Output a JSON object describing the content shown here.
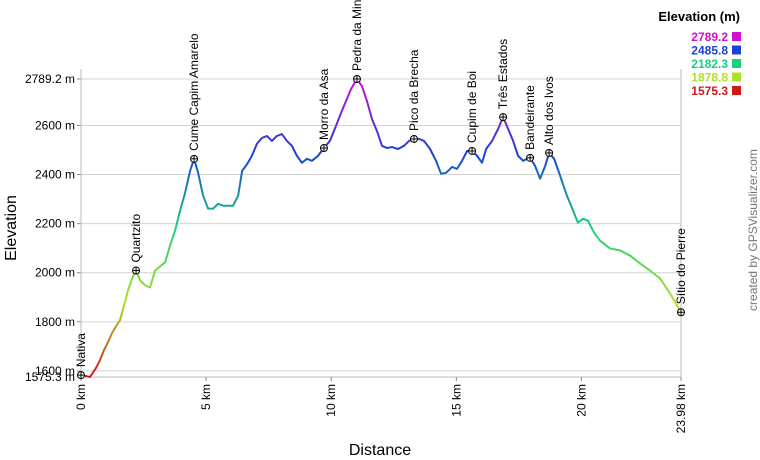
{
  "chart_data": {
    "type": "line",
    "y_label": "Elevation",
    "x_label": "Distance",
    "watermark": "created by GPSVisualizer.com",
    "xlim": [
      0,
      23.98
    ],
    "xticks": [
      {
        "value": 0,
        "label": "0 km"
      },
      {
        "value": 5,
        "label": "5 km"
      },
      {
        "value": 10,
        "label": "10 km"
      },
      {
        "value": 15,
        "label": "15 km"
      },
      {
        "value": 20,
        "label": "20 km"
      },
      {
        "value": 23.98,
        "label": "23.98 km"
      }
    ],
    "ylim": [
      1575.3,
      2789.2
    ],
    "yticks": [
      {
        "value": 1575.3,
        "label": "1575.3 m"
      },
      {
        "value": 1600,
        "label": "1600 m"
      },
      {
        "value": 1800,
        "label": "1800 m"
      },
      {
        "value": 2000,
        "label": "2000 m"
      },
      {
        "value": 2200,
        "label": "2200 m"
      },
      {
        "value": 2400,
        "label": "2400 m"
      },
      {
        "value": 2600,
        "label": "2600 m"
      },
      {
        "value": 2789.2,
        "label": "2789.2 m"
      }
    ],
    "grid": true,
    "legend": {
      "title": "Elevation (m)",
      "position": "top-right",
      "levels": [
        {
          "value": 2789.2,
          "color": "#d010d0"
        },
        {
          "value": 2485.8,
          "color": "#1a40d8"
        },
        {
          "value": 2182.3,
          "color": "#18d080"
        },
        {
          "value": 1878.8,
          "color": "#b0e020"
        },
        {
          "value": 1575.3,
          "color": "#d01818"
        }
      ]
    },
    "x": [
      0,
      0.2,
      0.36,
      0.6,
      0.76,
      0.92,
      1.08,
      1.24,
      1.4,
      1.56,
      1.72,
      1.88,
      2.04,
      2.2,
      2.36,
      2.56,
      2.76,
      2.96,
      3.16,
      3.36,
      3.56,
      3.76,
      3.96,
      4.16,
      4.36,
      4.52,
      4.68,
      4.88,
      5.08,
      5.28,
      5.48,
      5.68,
      5.88,
      6.08,
      6.28,
      6.44,
      6.64,
      6.83,
      7.03,
      7.23,
      7.43,
      7.63,
      7.83,
      8.03,
      8.23,
      8.43,
      8.63,
      8.83,
      9.03,
      9.23,
      9.47,
      9.71,
      9.95,
      10.19,
      10.39,
      10.59,
      10.79,
      11.03,
      11.23,
      11.43,
      11.63,
      11.83,
      12.03,
      12.23,
      12.43,
      12.67,
      12.91,
      13.11,
      13.31,
      13.51,
      13.71,
      13.95,
      14.19,
      14.39,
      14.59,
      14.83,
      15.03,
      15.23,
      15.43,
      15.63,
      15.83,
      16.03,
      16.19,
      16.43,
      16.67,
      16.87,
      17.07,
      17.27,
      17.47,
      17.67,
      17.83,
      17.95,
      18.15,
      18.35,
      18.55,
      18.71,
      18.91,
      19.15,
      19.39,
      19.62,
      19.86,
      20.06,
      20.26,
      20.5,
      20.74,
      21.14,
      21.54,
      21.94,
      22.34,
      22.74,
      23.14,
      23.54,
      23.98
    ],
    "values": [
      1583,
      1579,
      1575.3,
      1612,
      1644,
      1685,
      1717,
      1754,
      1782,
      1807,
      1867,
      1928,
      1977,
      2009,
      1969,
      1949,
      1940,
      2009,
      2026,
      2042,
      2111,
      2172,
      2253,
      2326,
      2415,
      2464,
      2407,
      2314,
      2261,
      2261,
      2281,
      2273,
      2273,
      2273,
      2314,
      2415,
      2443,
      2476,
      2525,
      2549,
      2557,
      2537,
      2557,
      2565,
      2537,
      2517,
      2476,
      2448,
      2464,
      2456,
      2476,
      2508,
      2537,
      2598,
      2650,
      2699,
      2748,
      2789.2,
      2760,
      2699,
      2626,
      2577,
      2517,
      2508,
      2512,
      2504,
      2517,
      2537,
      2545,
      2545,
      2537,
      2504,
      2456,
      2403,
      2407,
      2431,
      2423,
      2456,
      2496,
      2496,
      2476,
      2448,
      2504,
      2537,
      2586,
      2634,
      2586,
      2537,
      2476,
      2456,
      2464,
      2468,
      2435,
      2383,
      2435,
      2488,
      2464,
      2395,
      2322,
      2265,
      2204,
      2220,
      2212,
      2164,
      2131,
      2099,
      2091,
      2070,
      2038,
      2009,
      1977,
      1916,
      1839
    ],
    "waypoints": [
      {
        "name": "Nativa",
        "x": 0,
        "y": 1583
      },
      {
        "name": "Quartzito",
        "x": 2.2,
        "y": 2009
      },
      {
        "name": "Cume Capim Amarelo",
        "x": 4.52,
        "y": 2464
      },
      {
        "name": "Morro da Asa",
        "x": 9.71,
        "y": 2508
      },
      {
        "name": "Pedra da Mina",
        "x": 11.03,
        "y": 2789.2
      },
      {
        "name": "Pico da Brecha",
        "x": 13.31,
        "y": 2545
      },
      {
        "name": "Cupim de Boi",
        "x": 15.63,
        "y": 2496
      },
      {
        "name": "Três Estados",
        "x": 16.87,
        "y": 2634
      },
      {
        "name": "Bandeirante",
        "x": 17.95,
        "y": 2468
      },
      {
        "name": "Alto dos Ivos",
        "x": 18.71,
        "y": 2488
      },
      {
        "name": "Sítio do Pierre",
        "x": 23.98,
        "y": 1839
      }
    ]
  }
}
